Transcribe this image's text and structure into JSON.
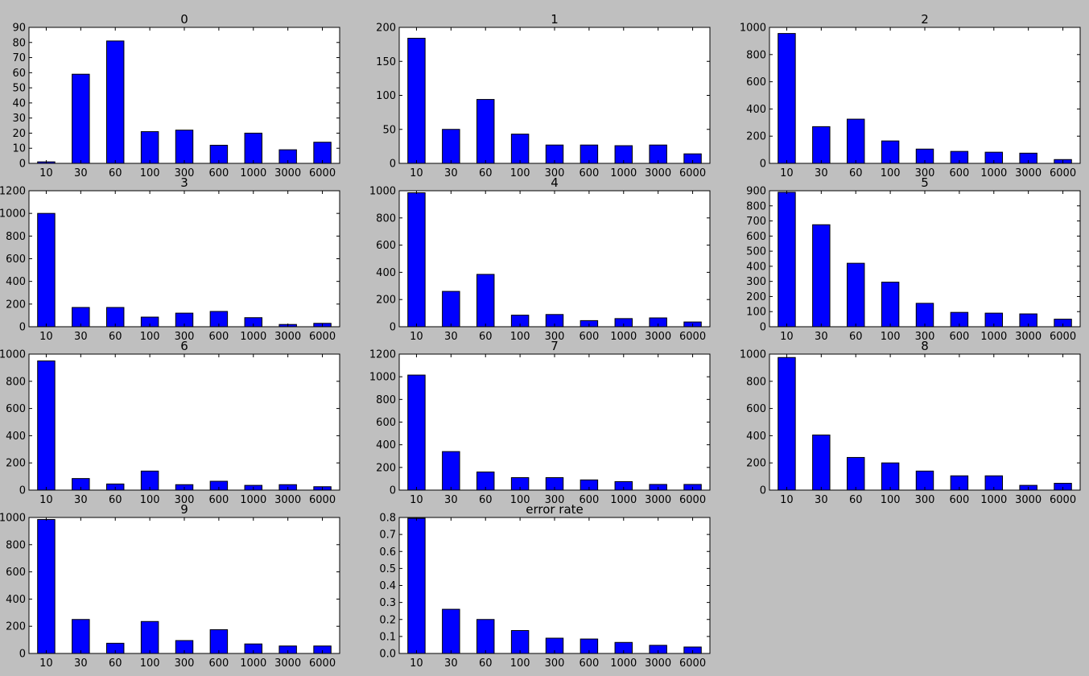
{
  "figure": {
    "background": "#bfbfbf",
    "plot_background": "#ffffff",
    "bar_color": "#0000ff",
    "bar_edge_color": "#000000"
  },
  "chart_data": [
    {
      "type": "bar",
      "title": "0",
      "categories": [
        "10",
        "30",
        "60",
        "100",
        "300",
        "600",
        "1000",
        "3000",
        "6000"
      ],
      "values": [
        1,
        59,
        81,
        21,
        22,
        12,
        20,
        9,
        14
      ],
      "ylim": [
        0,
        90
      ],
      "yticks": [
        0,
        10,
        20,
        30,
        40,
        50,
        60,
        70,
        80,
        90
      ],
      "ytick_labels": [
        "0",
        "10",
        "20",
        "30",
        "40",
        "50",
        "60",
        "70",
        "80",
        "90"
      ]
    },
    {
      "type": "bar",
      "title": "1",
      "categories": [
        "10",
        "30",
        "60",
        "100",
        "300",
        "600",
        "1000",
        "3000",
        "6000"
      ],
      "values": [
        184,
        50,
        94,
        43,
        27,
        27,
        26,
        27,
        14
      ],
      "ylim": [
        0,
        200
      ],
      "yticks": [
        0,
        50,
        100,
        150,
        200
      ],
      "ytick_labels": [
        "0",
        "50",
        "100",
        "150",
        "200"
      ]
    },
    {
      "type": "bar",
      "title": "2",
      "categories": [
        "10",
        "30",
        "60",
        "100",
        "300",
        "600",
        "1000",
        "3000",
        "6000"
      ],
      "values": [
        955,
        270,
        325,
        165,
        105,
        88,
        82,
        75,
        28
      ],
      "ylim": [
        0,
        1000
      ],
      "yticks": [
        0,
        200,
        400,
        600,
        800,
        1000
      ],
      "ytick_labels": [
        "0",
        "200",
        "400",
        "600",
        "800",
        "1000"
      ]
    },
    {
      "type": "bar",
      "title": "3",
      "categories": [
        "10",
        "30",
        "60",
        "100",
        "300",
        "600",
        "1000",
        "3000",
        "6000"
      ],
      "values": [
        1000,
        170,
        170,
        85,
        120,
        135,
        80,
        20,
        30
      ],
      "ylim": [
        0,
        1200
      ],
      "yticks": [
        0,
        200,
        400,
        600,
        800,
        1000,
        1200
      ],
      "ytick_labels": [
        "0",
        "200",
        "400",
        "600",
        "800",
        "1000",
        "1200"
      ]
    },
    {
      "type": "bar",
      "title": "4",
      "categories": [
        "10",
        "30",
        "60",
        "100",
        "300",
        "600",
        "1000",
        "3000",
        "6000"
      ],
      "values": [
        985,
        260,
        385,
        85,
        90,
        45,
        60,
        65,
        35
      ],
      "ylim": [
        0,
        1000
      ],
      "yticks": [
        0,
        200,
        400,
        600,
        800,
        1000
      ],
      "ytick_labels": [
        "0",
        "200",
        "400",
        "600",
        "800",
        "1000"
      ]
    },
    {
      "type": "bar",
      "title": "5",
      "categories": [
        "10",
        "30",
        "60",
        "100",
        "300",
        "600",
        "1000",
        "3000",
        "6000"
      ],
      "values": [
        890,
        675,
        420,
        295,
        155,
        95,
        90,
        85,
        50
      ],
      "ylim": [
        0,
        900
      ],
      "yticks": [
        0,
        100,
        200,
        300,
        400,
        500,
        600,
        700,
        800,
        900
      ],
      "ytick_labels": [
        "0",
        "100",
        "200",
        "300",
        "400",
        "500",
        "600",
        "700",
        "800",
        "900"
      ]
    },
    {
      "type": "bar",
      "title": "6",
      "categories": [
        "10",
        "30",
        "60",
        "100",
        "300",
        "600",
        "1000",
        "3000",
        "6000"
      ],
      "values": [
        950,
        85,
        45,
        140,
        40,
        65,
        35,
        40,
        25
      ],
      "ylim": [
        0,
        1000
      ],
      "yticks": [
        0,
        200,
        400,
        600,
        800,
        1000
      ],
      "ytick_labels": [
        "0",
        "200",
        "400",
        "600",
        "800",
        "1000"
      ]
    },
    {
      "type": "bar",
      "title": "7",
      "categories": [
        "10",
        "30",
        "60",
        "100",
        "300",
        "600",
        "1000",
        "3000",
        "6000"
      ],
      "values": [
        1015,
        340,
        160,
        110,
        110,
        90,
        75,
        50,
        50
      ],
      "ylim": [
        0,
        1200
      ],
      "yticks": [
        0,
        200,
        400,
        600,
        800,
        1000,
        1200
      ],
      "ytick_labels": [
        "0",
        "200",
        "400",
        "600",
        "800",
        "1000",
        "1200"
      ]
    },
    {
      "type": "bar",
      "title": "8",
      "categories": [
        "10",
        "30",
        "60",
        "100",
        "300",
        "600",
        "1000",
        "3000",
        "6000"
      ],
      "values": [
        975,
        405,
        240,
        200,
        140,
        105,
        105,
        35,
        50
      ],
      "ylim": [
        0,
        1000
      ],
      "yticks": [
        0,
        200,
        400,
        600,
        800,
        1000
      ],
      "ytick_labels": [
        "0",
        "200",
        "400",
        "600",
        "800",
        "1000"
      ]
    },
    {
      "type": "bar",
      "title": "9",
      "categories": [
        "10",
        "30",
        "60",
        "100",
        "300",
        "600",
        "1000",
        "3000",
        "6000"
      ],
      "values": [
        985,
        250,
        75,
        235,
        95,
        175,
        70,
        55,
        55
      ],
      "ylim": [
        0,
        1000
      ],
      "yticks": [
        0,
        200,
        400,
        600,
        800,
        1000
      ],
      "ytick_labels": [
        "0",
        "200",
        "400",
        "600",
        "800",
        "1000"
      ]
    },
    {
      "type": "bar",
      "title": "error rate",
      "categories": [
        "10",
        "30",
        "60",
        "100",
        "300",
        "600",
        "1000",
        "3000",
        "6000"
      ],
      "values": [
        0.795,
        0.26,
        0.2,
        0.135,
        0.09,
        0.085,
        0.065,
        0.048,
        0.038
      ],
      "ylim": [
        0,
        0.8
      ],
      "yticks": [
        0,
        0.1,
        0.2,
        0.3,
        0.4,
        0.5,
        0.6,
        0.7,
        0.8
      ],
      "ytick_labels": [
        "0.0",
        "0.1",
        "0.2",
        "0.3",
        "0.4",
        "0.5",
        "0.6",
        "0.7",
        "0.8"
      ]
    }
  ]
}
